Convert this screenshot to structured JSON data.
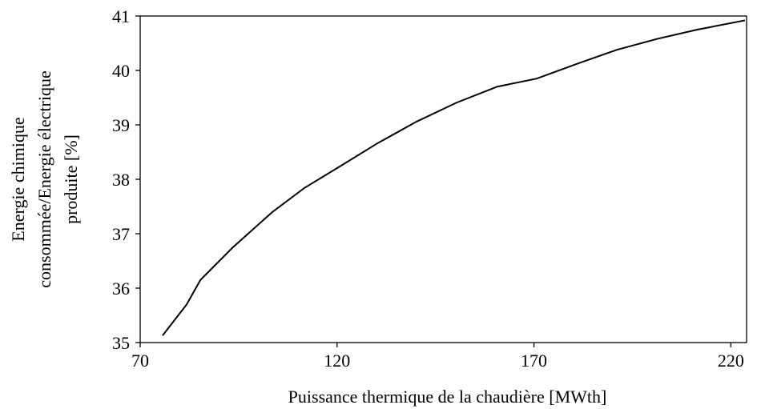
{
  "chart_data": {
    "type": "line",
    "xlabel": "Puissance thermique de la chaudière [MWth]",
    "ylabel": [
      "Energie chimique",
      "consommée/Energie électrique",
      "produite [%]"
    ],
    "x": [
      75.7,
      81.8,
      85.3,
      93.4,
      103.6,
      111.7,
      119.9,
      130,
      140.2,
      150.4,
      160.6,
      170.7,
      180.9,
      191.1,
      201.3,
      211.5,
      223.6
    ],
    "series": [
      {
        "name": "Energie chimique consommée/Energie électrique produite",
        "color": "#000000",
        "values": [
          35.13,
          35.7,
          36.15,
          36.74,
          37.4,
          37.84,
          38.2,
          38.65,
          39.06,
          39.41,
          39.7,
          39.85,
          40.12,
          40.38,
          40.58,
          40.75,
          40.92
        ]
      }
    ],
    "xlim": [
      70,
      224
    ],
    "ylim": [
      35,
      41
    ],
    "xticks": [
      70,
      120,
      170,
      220
    ],
    "yticks": [
      35,
      36,
      37,
      38,
      39,
      40,
      41
    ]
  }
}
